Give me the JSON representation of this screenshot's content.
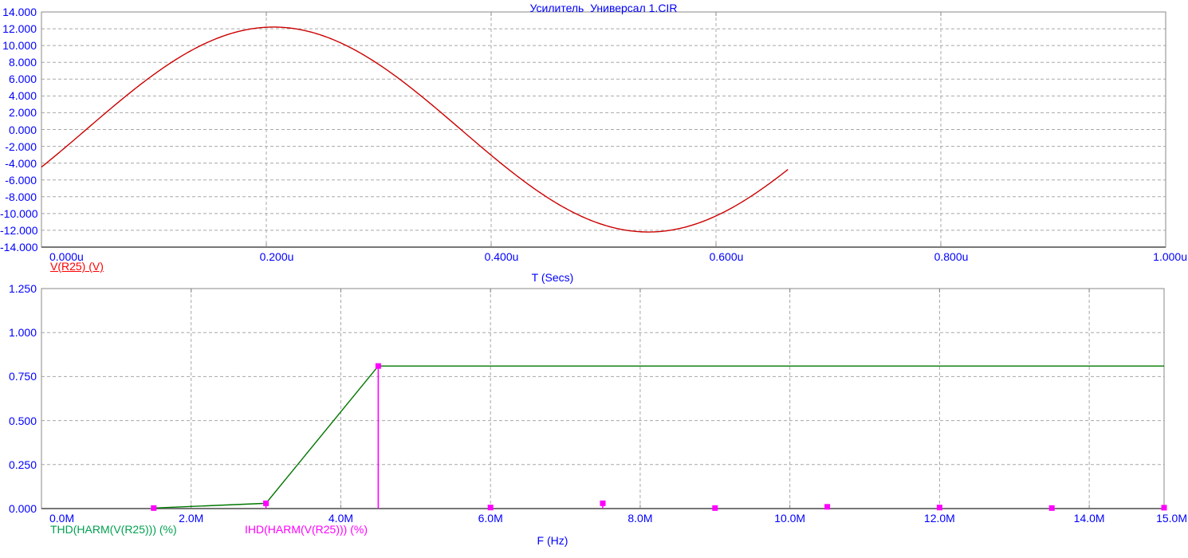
{
  "title": "Усилитель  Универсал 1.CIR",
  "colors": {
    "axis_text_blue": "#0000ff",
    "grid_gray": "#a8a8a8",
    "border_gray": "#888888",
    "sine_red": "#cc0000",
    "legend_red": "#ff0000",
    "thd_green_line": "#007700",
    "thd_green_legend": "#00a050",
    "ihd_magenta": "#ff00ff"
  },
  "chart_data": [
    {
      "type": "line",
      "title": "Усилитель  Универсал 1.CIR",
      "xlabel": "T (Secs)",
      "ylabel": "",
      "xlim_us": [
        0,
        1
      ],
      "ylim": [
        -14,
        14
      ],
      "x_ticks_us": [
        0,
        0.2,
        0.4,
        0.6,
        0.8,
        1.0
      ],
      "x_tick_labels": [
        "0.000u",
        "0.200u",
        "0.400u",
        "0.600u",
        "0.800u",
        "1.000u"
      ],
      "y_ticks": [
        14,
        12,
        10,
        8,
        6,
        4,
        2,
        0,
        -2,
        -4,
        -6,
        -8,
        -10,
        -12,
        -14
      ],
      "y_tick_labels": [
        "14.000",
        "12.000",
        "10.000",
        "8.000",
        "6.000",
        "4.000",
        "2.000",
        "0.000",
        "-2.000",
        "-4.000",
        "-6.000",
        "-8.000",
        "-10.000",
        "-12.000",
        "-14.000"
      ],
      "grid": true,
      "series": [
        {
          "name": "V(R25) (V)",
          "waveform": "sine",
          "amplitude_v": 12.2,
          "frequency_mhz": 1.5,
          "phase_rad": -0.375,
          "t_range_us": [
            0,
            0.664
          ],
          "value_at_0_v": -4.5,
          "peak_v_at_us": [
            12.2,
            0.206
          ],
          "min_v_at_us": [
            -12.2,
            0.539
          ],
          "color": "#cc0000"
        }
      ]
    },
    {
      "type": "line+stem",
      "title": "",
      "xlabel": "F (Hz)",
      "ylabel": "",
      "xlim_mhz": [
        0,
        15
      ],
      "ylim": [
        0,
        1.25
      ],
      "x_ticks_mhz": [
        0,
        2,
        4,
        6,
        8,
        10,
        12,
        14,
        15
      ],
      "x_tick_labels": [
        "0.0M",
        "2.0M",
        "4.0M",
        "6.0M",
        "8.0M",
        "10.0M",
        "12.0M",
        "14.0M",
        "15.0M"
      ],
      "y_ticks": [
        1.25,
        1.0,
        0.75,
        0.5,
        0.25,
        0
      ],
      "y_tick_labels": [
        "1.250",
        "1.000",
        "0.750",
        "0.500",
        "0.250",
        "0.000"
      ],
      "grid": true,
      "series": [
        {
          "name": "THD(HARM(V(R25))) (%)",
          "style": "line",
          "color": "#007700",
          "x_mhz": [
            1.5,
            3.0,
            4.5,
            6.0,
            7.5,
            9.0,
            10.5,
            12.0,
            13.5,
            15.0
          ],
          "y_pct": [
            0.003,
            0.03,
            0.81,
            0.81,
            0.81,
            0.81,
            0.81,
            0.81,
            0.81,
            0.81
          ]
        },
        {
          "name": "IHD(HARM(V(R25))) (%)",
          "style": "stem-square",
          "color": "#ff00ff",
          "x_mhz": [
            1.5,
            3.0,
            4.5,
            6.0,
            7.5,
            9.0,
            10.5,
            12.0,
            13.5,
            15.0
          ],
          "y_pct": [
            0.003,
            0.03,
            0.81,
            0.006,
            0.03,
            0.003,
            0.01,
            0.006,
            0.003,
            0.005
          ]
        }
      ]
    }
  ]
}
